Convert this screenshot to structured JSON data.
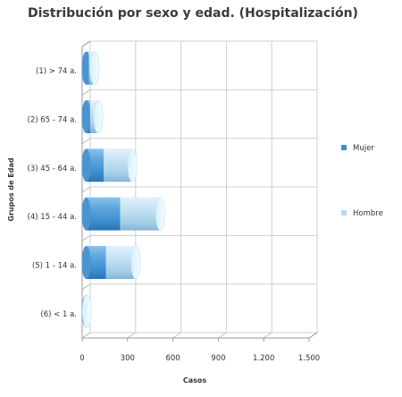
{
  "chart_data": {
    "type": "bar",
    "orientation": "horizontal",
    "stacked": true,
    "style": "3d-cylinder",
    "title": "Distribución por sexo y edad. (Hospitalización)",
    "xlabel": "Casos",
    "ylabel": "Grupos de Edad",
    "categories": [
      "(1) > 74 a.",
      "(2) 65 - 74 a.",
      "(3) 45 - 64 a.",
      "(4) 15 - 44 a.",
      "(5) 1 - 14 a.",
      "(6) < 1 a."
    ],
    "series": [
      {
        "name": "Mujer",
        "color": "#3f8fcf",
        "values": [
          18,
          26,
          115,
          225,
          130,
          2
        ]
      },
      {
        "name": "Hombre",
        "color": "#b5dcf3",
        "values": [
          38,
          54,
          190,
          265,
          198,
          3
        ]
      }
    ],
    "xlim": [
      0,
      1500
    ],
    "xticks": [
      "0",
      "300",
      "600",
      "900",
      "1.200",
      "1.500"
    ],
    "grid": true,
    "legend_position": "right"
  }
}
